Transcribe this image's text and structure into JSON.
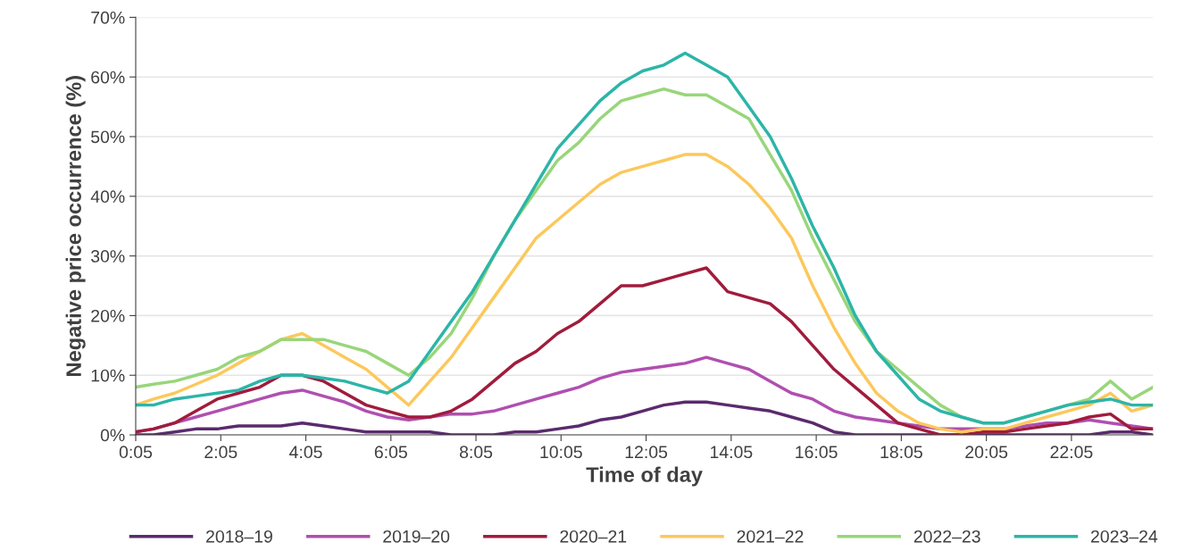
{
  "chart_data": {
    "type": "line",
    "xlabel": "Time of day",
    "ylabel": "Negative price occurrence (%)",
    "x": [
      0.0833,
      0.5,
      1,
      1.5,
      2,
      2.5,
      3,
      3.5,
      4,
      4.5,
      5,
      5.5,
      6,
      6.5,
      7,
      7.5,
      8,
      8.5,
      9,
      9.5,
      10,
      10.5,
      11,
      11.5,
      12,
      12.5,
      13,
      13.5,
      14,
      14.5,
      15,
      15.5,
      16,
      16.5,
      17,
      17.5,
      18,
      18.5,
      19,
      19.5,
      20,
      20.5,
      21,
      21.5,
      22,
      22.5,
      23,
      23.5,
      24
    ],
    "xlim": [
      0.0833,
      24
    ],
    "xticks": [
      {
        "value": 0.0833,
        "label": "0:05"
      },
      {
        "value": 2.0833,
        "label": "2:05"
      },
      {
        "value": 4.0833,
        "label": "4:05"
      },
      {
        "value": 6.0833,
        "label": "6:05"
      },
      {
        "value": 8.0833,
        "label": "8:05"
      },
      {
        "value": 10.0833,
        "label": "10:05"
      },
      {
        "value": 12.0833,
        "label": "12:05"
      },
      {
        "value": 14.0833,
        "label": "14:05"
      },
      {
        "value": 16.0833,
        "label": "16:05"
      },
      {
        "value": 18.0833,
        "label": "18:05"
      },
      {
        "value": 20.0833,
        "label": "20:05"
      },
      {
        "value": 22.0833,
        "label": "22:05"
      }
    ],
    "ylim": [
      0,
      70
    ],
    "yticks": [
      {
        "value": 0,
        "label": "0%"
      },
      {
        "value": 10,
        "label": "10%"
      },
      {
        "value": 20,
        "label": "20%"
      },
      {
        "value": 30,
        "label": "30%"
      },
      {
        "value": 40,
        "label": "40%"
      },
      {
        "value": 50,
        "label": "50%"
      },
      {
        "value": 60,
        "label": "60%"
      },
      {
        "value": 70,
        "label": "70%"
      }
    ],
    "grid": "y",
    "legend": "bottom",
    "line_style": "solid",
    "series": [
      {
        "name": "2018–19",
        "color": "#5b2a6e",
        "values": [
          0,
          0,
          0.5,
          1,
          1,
          1.5,
          1.5,
          1.5,
          2,
          1.5,
          1,
          0.5,
          0.5,
          0.5,
          0.5,
          0,
          0,
          0,
          0.5,
          0.5,
          1,
          1.5,
          2.5,
          3,
          4,
          5,
          5.5,
          5.5,
          5,
          4.5,
          4,
          3,
          2,
          0.5,
          0,
          0,
          0,
          0,
          0,
          0,
          0,
          0,
          0,
          0,
          0,
          0,
          0.5,
          0.5,
          0
        ]
      },
      {
        "name": "2019–20",
        "color": "#b04fb0",
        "values": [
          0.5,
          1,
          2,
          3,
          4,
          5,
          6,
          7,
          7.5,
          6.5,
          5.5,
          4,
          3,
          2.5,
          3,
          3.5,
          3.5,
          4,
          5,
          6,
          7,
          8,
          9.5,
          10.5,
          11,
          11.5,
          12,
          13,
          12,
          11,
          9,
          7,
          6,
          4,
          3,
          2.5,
          2,
          1.5,
          1,
          1,
          1,
          1,
          1.5,
          2,
          2,
          2.5,
          2,
          1.5,
          1
        ]
      },
      {
        "name": "2020–21",
        "color": "#a01c3c",
        "values": [
          0.5,
          1,
          2,
          4,
          6,
          7,
          8,
          10,
          10,
          9,
          7,
          5,
          4,
          3,
          3,
          4,
          6,
          9,
          12,
          14,
          17,
          19,
          22,
          25,
          25,
          26,
          27,
          28,
          24,
          23,
          22,
          19,
          15,
          11,
          8,
          5,
          2,
          1,
          0,
          0,
          0.5,
          0.5,
          1,
          1.5,
          2,
          3,
          3.5,
          1,
          1
        ]
      },
      {
        "name": "2021–22",
        "color": "#fcc85c",
        "values": [
          5,
          6,
          7,
          8.5,
          10,
          12,
          14,
          16,
          17,
          15,
          13,
          11,
          8,
          5,
          9,
          13,
          18,
          23,
          28,
          33,
          36,
          39,
          42,
          44,
          45,
          46,
          47,
          47,
          45,
          42,
          38,
          33,
          25,
          18,
          12,
          7,
          4,
          2,
          1,
          0.5,
          1,
          1,
          2,
          3,
          4,
          5,
          7,
          4,
          5
        ]
      },
      {
        "name": "2022–23",
        "color": "#98d67a",
        "values": [
          8,
          8.5,
          9,
          10,
          11,
          13,
          14,
          16,
          16,
          16,
          15,
          14,
          12,
          10,
          13,
          17,
          23,
          30,
          36,
          41,
          46,
          49,
          53,
          56,
          57,
          58,
          57,
          57,
          55,
          53,
          47,
          41,
          33,
          26,
          19,
          14,
          11,
          8,
          5,
          3,
          2,
          2,
          3,
          4,
          5,
          6,
          9,
          6,
          8
        ]
      },
      {
        "name": "2023–24",
        "color": "#2cb5a8",
        "values": [
          5,
          5,
          6,
          6.5,
          7,
          7.5,
          9,
          10,
          10,
          9.5,
          9,
          8,
          7,
          9,
          14,
          19,
          24,
          30,
          36,
          42,
          48,
          52,
          56,
          59,
          61,
          62,
          64,
          62,
          60,
          55,
          50,
          43,
          35,
          28,
          20,
          14,
          10,
          6,
          4,
          3,
          2,
          2,
          3,
          4,
          5,
          5.5,
          6,
          5,
          5
        ]
      }
    ]
  }
}
